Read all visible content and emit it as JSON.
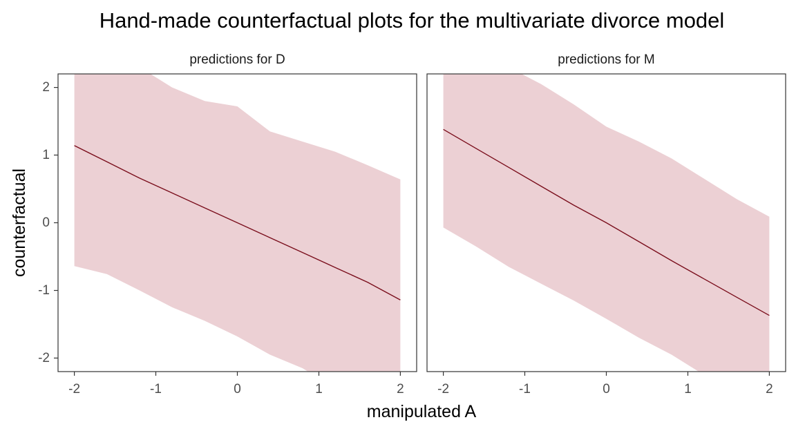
{
  "chart_data": {
    "type": "area",
    "title": "Hand-made counterfactual plots for the multivariate divorce model",
    "xlabel": "manipulated A",
    "ylabel": "counterfactual",
    "xlim": [
      -2.2,
      2.2
    ],
    "ylim": [
      -2.2,
      2.2
    ],
    "x_ticks": [
      -2,
      -1,
      0,
      1,
      2
    ],
    "y_ticks": [
      -2,
      -1,
      0,
      1,
      2
    ],
    "x_tick_labels": [
      "-2",
      "-1",
      "0",
      "1",
      "2"
    ],
    "y_tick_labels": [
      "-2",
      "-1",
      "0",
      "1",
      "2"
    ],
    "grid": false,
    "colors": {
      "line": "#7a0e1c",
      "band": "#ecd0d4"
    },
    "panels": [
      {
        "label": "predictions for D",
        "x": [
          -2.0,
          -1.6,
          -1.2,
          -0.8,
          -0.4,
          0.0,
          0.4,
          0.8,
          1.2,
          1.6,
          2.0
        ],
        "mean": [
          1.14,
          0.9,
          0.66,
          0.44,
          0.22,
          0.0,
          -0.22,
          -0.44,
          -0.66,
          -0.88,
          -1.14
        ],
        "lower": [
          -0.64,
          -0.76,
          -1.0,
          -1.25,
          -1.45,
          -1.68,
          -1.95,
          -2.15,
          -2.45,
          -2.75,
          -3.0
        ],
        "upper": [
          2.9,
          2.65,
          2.3,
          2.0,
          1.8,
          1.72,
          1.35,
          1.2,
          1.05,
          0.85,
          0.64
        ]
      },
      {
        "label": "predictions for M",
        "x": [
          -2.0,
          -1.6,
          -1.2,
          -0.8,
          -0.4,
          0.0,
          0.4,
          0.8,
          1.2,
          1.6,
          2.0
        ],
        "mean": [
          1.38,
          1.1,
          0.82,
          0.54,
          0.26,
          0.0,
          -0.28,
          -0.56,
          -0.83,
          -1.1,
          -1.37
        ],
        "lower": [
          -0.07,
          -0.35,
          -0.65,
          -0.9,
          -1.15,
          -1.42,
          -1.7,
          -1.95,
          -2.25,
          -2.5,
          -2.8
        ],
        "upper": [
          2.9,
          2.6,
          2.3,
          2.05,
          1.75,
          1.42,
          1.2,
          0.95,
          0.65,
          0.35,
          0.09
        ]
      }
    ]
  }
}
